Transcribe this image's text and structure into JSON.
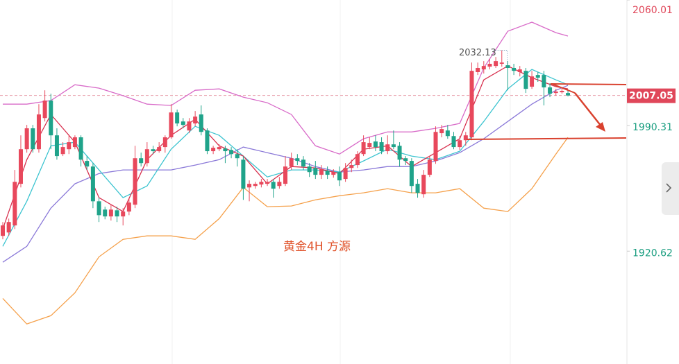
{
  "chart_data": {
    "type": "candlestick",
    "ylim": [
      1858,
      2060.01
    ],
    "yticks": [
      2060.01,
      1990.31,
      1920.62
    ],
    "tick_colors": [
      "#e0475a",
      "#1a9e80",
      "#1a9e80"
    ],
    "last_price": 2007.05,
    "last_price_color": "#e0475a",
    "high_label": 2032.13,
    "annotation": "黄金4H  方源",
    "up_color": "#e8485c",
    "down_color": "#1fa38a",
    "open": [
      1929.1,
      1931.0,
      1934.9,
      1958.0,
      1977.2,
      1988.8,
      1977.2,
      1994.5,
      2004.2,
      1984.9,
      1974.5,
      1977.2,
      1978.4,
      1983.8,
      1970.7,
      1967.6,
      1948.3,
      1943.7,
      1939.9,
      1943.3,
      1939.9,
      1942.6,
      1946.4,
      1972.2,
      1969.5,
      1977.2,
      1976.1,
      1978.4,
      1983.8,
      1997.6,
      1992.6,
      1987.6,
      1991.5,
      1996.5,
      1987.6,
      1976.1,
      1977.2,
      1977.6,
      1976.8,
      1974.5,
      1971.4,
      1956.0,
      1956.8,
      1957.6,
      1958.0,
      1959.1,
      1956.8,
      1958.0,
      1967.6,
      1972.2,
      1971.4,
      1967.6,
      1966.8,
      1963.0,
      1965.3,
      1963.0,
      1964.5,
      1960.7,
      1966.8,
      1968.4,
      1974.5,
      1978.4,
      1981.5,
      1981.1,
      1976.1,
      1979.9,
      1979.1,
      1972.2,
      1970.7,
      1958.0,
      1952.2,
      1963.0,
      1970.7,
      1986.1,
      1987.6,
      1984.5,
      1978.4,
      1982.2,
      1983.8,
      2020.0,
      2021.5,
      2023.0,
      2023.4,
      2024.6,
      2023.8,
      2022.3,
      2020.0,
      2020.7,
      2011.9,
      2018.4,
      2018.4,
      2011.5,
      2008.4,
      2008.8,
      2008.4
    ],
    "high": [
      1936.8,
      1938.7,
      1965.7,
      1984.9,
      1990.7,
      1990.7,
      2002.2,
      2009.9,
      2008.0,
      1988.8,
      1981.1,
      1984.9,
      1984.9,
      1984.9,
      1973.4,
      1969.5,
      1950.3,
      1945.3,
      1946.4,
      1945.3,
      1944.5,
      1950.3,
      1979.1,
      1975.3,
      1981.1,
      1979.1,
      1981.1,
      1984.9,
      2002.2,
      1999.2,
      1994.5,
      1994.5,
      1998.4,
      2001.5,
      1988.8,
      1979.1,
      1979.9,
      1979.1,
      1978.4,
      1977.2,
      1973.4,
      1959.9,
      1959.1,
      1960.7,
      1960.7,
      1960.7,
      1961.8,
      1973.4,
      1975.3,
      1974.5,
      1973.4,
      1969.5,
      1970.7,
      1968.4,
      1967.6,
      1966.1,
      1967.6,
      1969.5,
      1971.4,
      1976.1,
      1984.9,
      1983.8,
      1984.9,
      1983.8,
      1984.9,
      1987.6,
      1981.1,
      1973.4,
      1972.2,
      1960.7,
      1965.7,
      1973.4,
      1989.9,
      1990.7,
      1990.7,
      1986.8,
      1984.5,
      1986.8,
      2025.3,
      2025.3,
      2026.1,
      2027.3,
      2028.4,
      2032.13,
      2026.1,
      2024.6,
      2023.4,
      2022.3,
      2020.7,
      2020.0,
      2020.7,
      2013.8,
      2010.7,
      2010.7,
      2009.9
    ],
    "low": [
      1927.2,
      1929.1,
      1932.9,
      1956.0,
      1975.3,
      1975.3,
      1975.3,
      1992.6,
      1977.2,
      1971.4,
      1973.4,
      1974.5,
      1977.2,
      1967.6,
      1965.7,
      1944.5,
      1936.8,
      1938.3,
      1937.6,
      1936.8,
      1934.9,
      1940.6,
      1944.5,
      1967.6,
      1967.6,
      1974.5,
      1975.3,
      1975.3,
      1983.0,
      1989.9,
      1988.8,
      1986.1,
      1989.9,
      1984.9,
      1974.5,
      1974.5,
      1976.1,
      1969.5,
      1972.2,
      1967.6,
      1949.1,
      1948.3,
      1955.3,
      1956.0,
      1956.8,
      1950.3,
      1955.3,
      1956.8,
      1965.7,
      1968.4,
      1965.7,
      1961.8,
      1960.7,
      1960.7,
      1960.7,
      1961.4,
      1956.8,
      1959.1,
      1964.5,
      1966.8,
      1973.4,
      1977.2,
      1976.1,
      1974.5,
      1974.5,
      1977.2,
      1967.6,
      1968.4,
      1953.0,
      1950.3,
      1950.3,
      1961.8,
      1969.1,
      1983.8,
      1983.0,
      1977.2,
      1976.8,
      1979.1,
      1982.2,
      2018.4,
      2019.2,
      2021.5,
      2022.3,
      2023.0,
      2009.9,
      2018.4,
      2017.6,
      2008.4,
      2010.7,
      2014.6,
      2001.5,
      2006.1,
      2006.9,
      2008.0,
      2006.5
    ],
    "close": [
      1934.9,
      1936.8,
      1959.1,
      1977.2,
      1988.8,
      1977.2,
      1996.5,
      2004.2,
      1984.9,
      1973.4,
      1978.4,
      1981.1,
      1983.8,
      1971.4,
      1967.6,
      1948.3,
      1940.6,
      1939.9,
      1943.7,
      1939.9,
      1942.6,
      1947.6,
      1972.2,
      1969.5,
      1977.2,
      1976.1,
      1978.4,
      1983.8,
      1997.6,
      1991.5,
      1990.7,
      1992.6,
      1995.3,
      1986.8,
      1976.1,
      1978.0,
      1978.4,
      1976.1,
      1974.5,
      1972.2,
      1955.3,
      1958.0,
      1958.0,
      1959.1,
      1959.1,
      1955.3,
      1959.1,
      1967.6,
      1972.2,
      1970.7,
      1967.6,
      1964.5,
      1963.0,
      1966.1,
      1963.0,
      1964.5,
      1959.9,
      1966.8,
      1968.4,
      1974.5,
      1981.1,
      1980.7,
      1978.4,
      1976.1,
      1979.9,
      1978.4,
      1971.4,
      1970.7,
      1956.8,
      1953.0,
      1963.0,
      1971.4,
      1986.8,
      1988.4,
      1984.5,
      1978.4,
      1982.2,
      1984.9,
      2020.7,
      2022.3,
      2023.4,
      2024.6,
      2026.1,
      2025.3,
      2022.3,
      2020.7,
      2021.5,
      2010.7,
      2017.6,
      2016.9,
      2011.5,
      2008.0,
      2009.2,
      2009.6,
      2007.05
    ],
    "series": [
      {
        "color": "#d86ac8",
        "x": [
          0,
          4,
          8,
          12,
          16,
          20,
          24,
          28,
          32,
          36,
          40,
          44,
          48,
          52,
          56,
          60,
          64,
          68,
          72,
          76,
          80,
          84,
          88,
          92,
          94
        ],
        "values": [
          2002.2,
          2002.2,
          2004.2,
          2013.0,
          2011.1,
          2006.9,
          2002.2,
          2001.5,
          2009.9,
          2010.7,
          2006.1,
          2003.0,
          1996.5,
          1979.1,
          1974.5,
          1983.0,
          1986.8,
          1986.8,
          1988.8,
          1991.5,
          2022.3,
          2042.7,
          2047.7,
          2041.9,
          2040.0
        ]
      },
      {
        "color": "#f5a04a",
        "x": [
          0,
          4,
          8,
          12,
          16,
          20,
          24,
          28,
          32,
          36,
          40,
          44,
          48,
          52,
          56,
          60,
          64,
          68,
          72,
          76,
          80,
          84,
          88,
          92,
          94
        ],
        "values": [
          1894.4,
          1880.2,
          1884.8,
          1897.5,
          1917.5,
          1927.2,
          1929.1,
          1929.1,
          1927.2,
          1938.7,
          1956.0,
          1945.3,
          1945.7,
          1949.1,
          1951.4,
          1953.0,
          1955.3,
          1953.0,
          1953.0,
          1955.3,
          1944.5,
          1942.6,
          1955.3,
          1974.5,
          1983.8
        ]
      },
      {
        "color": "#8a78d8",
        "x": [
          0,
          4,
          8,
          12,
          16,
          20,
          24,
          28,
          32,
          36,
          40,
          44,
          48,
          52,
          56,
          60,
          64,
          68,
          72,
          76,
          80,
          84,
          88,
          92,
          94
        ],
        "values": [
          1914.5,
          1923.3,
          1944.5,
          1958.0,
          1963.7,
          1965.7,
          1965.7,
          1965.7,
          1968.4,
          1971.4,
          1978.4,
          1975.3,
          1972.2,
          1967.6,
          1964.5,
          1965.7,
          1967.6,
          1967.6,
          1970.7,
          1975.3,
          1983.0,
          1992.6,
          2002.2,
          2009.9,
          2012.6
        ]
      },
      {
        "color": "#3cc4d0",
        "x": [
          0,
          4,
          8,
          12,
          16,
          20,
          24,
          28,
          32,
          36,
          40,
          44,
          48,
          52,
          56,
          60,
          64,
          68,
          72,
          76,
          80,
          84,
          88,
          92,
          94
        ],
        "values": [
          1923.3,
          1948.3,
          1979.1,
          1981.1,
          1965.7,
          1950.3,
          1956.8,
          1977.2,
          1989.9,
          1984.9,
          1973.4,
          1961.8,
          1965.7,
          1965.7,
          1964.5,
          1970.7,
          1977.2,
          1973.4,
          1971.4,
          1976.1,
          1992.6,
          2010.7,
          2021.5,
          2015.7,
          2013.0
        ]
      },
      {
        "color": "#d8304e",
        "x": [
          0,
          4,
          8,
          12,
          16,
          20,
          24,
          28,
          32,
          36,
          40,
          44,
          48,
          52,
          56,
          60,
          64,
          68,
          72,
          76,
          80,
          84,
          88,
          92,
          94
        ],
        "values": [
          1932.9,
          1971.4,
          1996.5,
          1981.1,
          1950.3,
          1942.6,
          1971.4,
          1984.9,
          1993.8,
          1979.1,
          1973.4,
          1958.0,
          1967.6,
          1966.8,
          1963.7,
          1977.2,
          1979.1,
          1967.6,
          1975.3,
          1983.0,
          2015.7,
          2023.4,
          2016.9,
          2011.9,
          2010.7
        ]
      }
    ]
  }
}
